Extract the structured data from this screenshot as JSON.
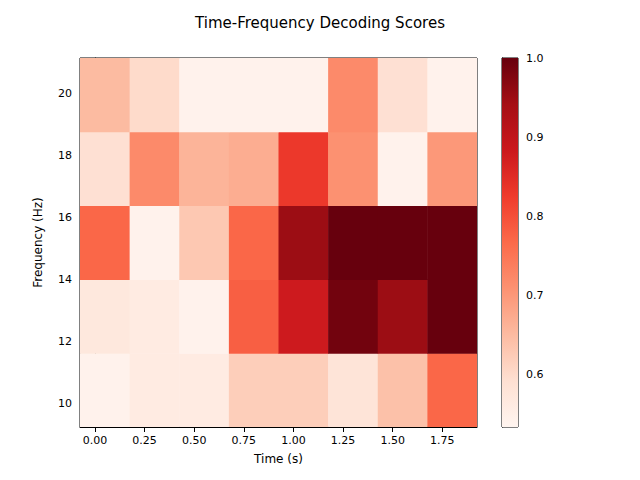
{
  "chart_data": {
    "type": "heatmap",
    "title": "Time-Frequency Decoding Scores",
    "x_label": "Time (s)",
    "y_label": "Frequency (Hz)",
    "x": [
      0.05,
      0.3,
      0.55,
      0.8,
      1.05,
      1.3,
      1.55,
      1.8
    ],
    "y": [
      10.43,
      12.81,
      15.19,
      17.57,
      19.95
    ],
    "values": [
      [
        0.54,
        0.56,
        0.56,
        0.62,
        0.62,
        0.58,
        0.64,
        0.77
      ],
      [
        0.57,
        0.56,
        0.54,
        0.78,
        0.88,
        0.99,
        0.95,
        1.0
      ],
      [
        0.77,
        0.54,
        0.63,
        0.77,
        0.95,
        1.0,
        1.0,
        1.0
      ],
      [
        0.59,
        0.72,
        0.66,
        0.67,
        0.83,
        0.71,
        0.54,
        0.7
      ],
      [
        0.65,
        0.6,
        0.54,
        0.54,
        0.54,
        0.72,
        0.59,
        0.54
      ]
    ],
    "xlim": [
      -0.075,
      1.925
    ],
    "xticks": [
      {
        "value": 0,
        "label": "0.00"
      },
      {
        "value": 0.25,
        "label": "0.25"
      },
      {
        "value": 0.5,
        "label": "0.50"
      },
      {
        "value": 0.75,
        "label": "0.75"
      },
      {
        "value": 1,
        "label": "1.00"
      },
      {
        "value": 1.25,
        "label": "1.25"
      },
      {
        "value": 1.5,
        "label": "1.50"
      },
      {
        "value": 1.75,
        "label": "1.75"
      }
    ],
    "ylim": [
      9.24,
      21.14
    ],
    "yticks": [
      10,
      12,
      14,
      16,
      18,
      20
    ],
    "color": "Reds",
    "colorbar": {
      "range": [
        0.533,
        1.0
      ],
      "ticks": [
        0.6,
        0.7,
        0.8,
        0.9,
        {
          "value": 1,
          "label": "1.0"
        }
      ]
    }
  }
}
